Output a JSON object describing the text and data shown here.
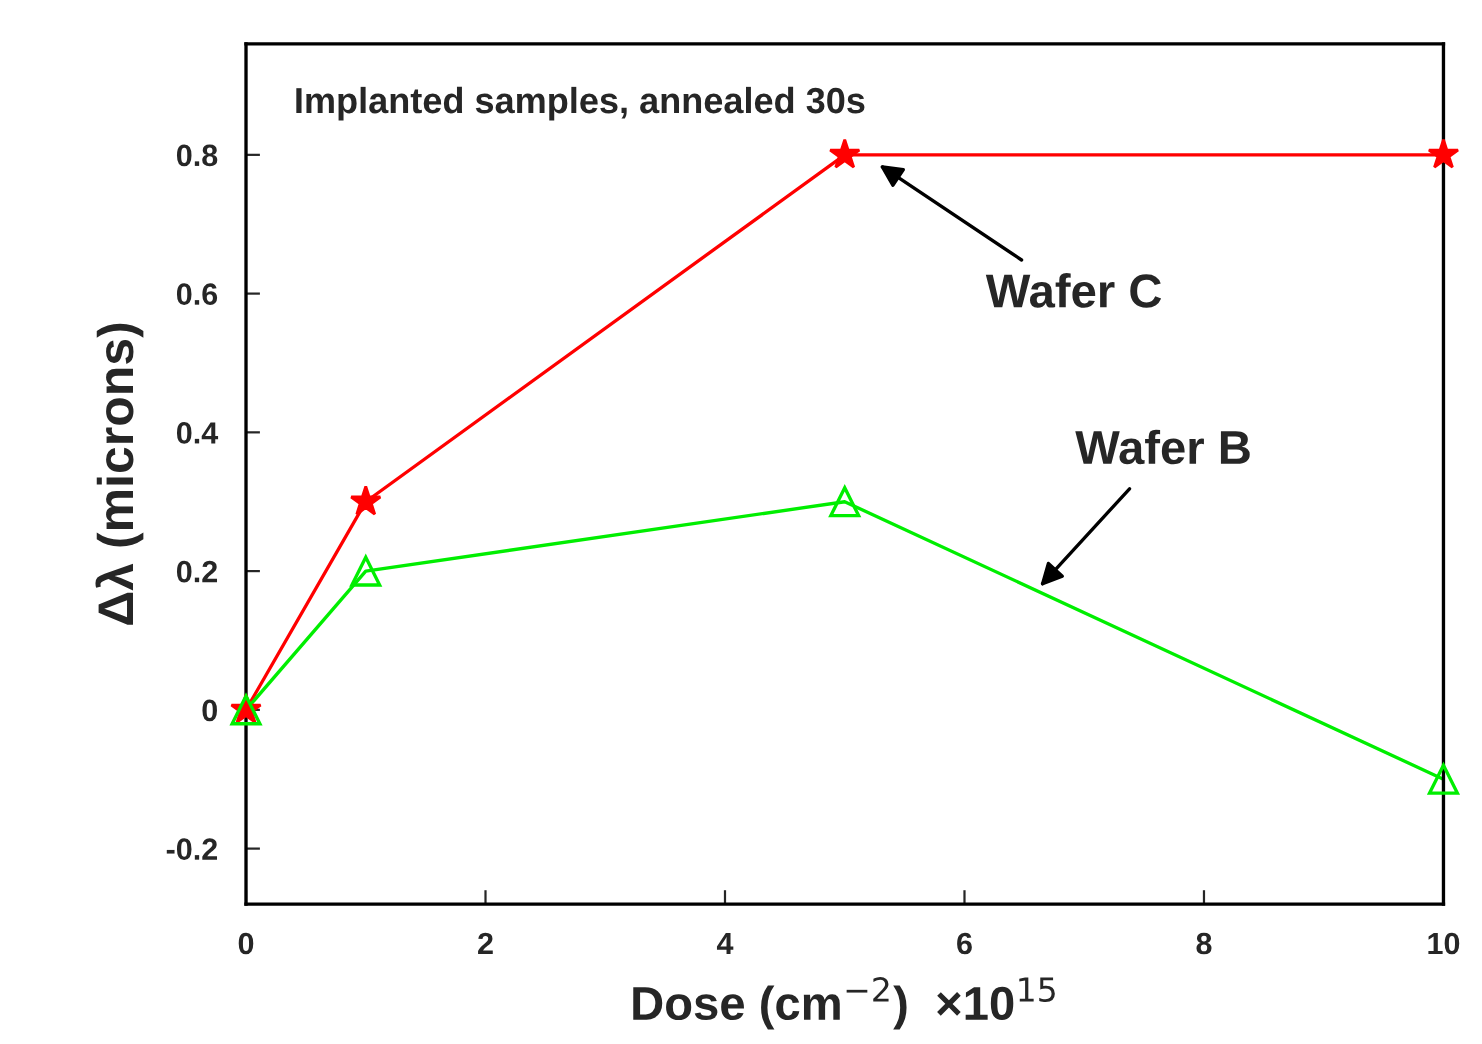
{
  "chart_data": {
    "type": "line",
    "xlabel": "Dose (cm$^{−2}$)  ×10$^{15}$",
    "ylabel": "Δλ (microns)",
    "x": [
      0,
      1,
      5,
      10
    ],
    "series": [
      {
        "color": "#ff0000",
        "marker": "star",
        "values": [
          0,
          0.3,
          0.8,
          0.8
        ]
      },
      {
        "color": "#00ee00",
        "marker": "triangle",
        "values": [
          0,
          0.2,
          0.3,
          -0.1
        ]
      }
    ],
    "xlim": [
      0,
      10
    ],
    "xticks": [
      0,
      2,
      4,
      6,
      8,
      10
    ],
    "ylim": [
      -0.28,
      0.96
    ],
    "yticks": [
      -0.2,
      0,
      0.2,
      0.4,
      0.6,
      0.8
    ],
    "grid": false,
    "line_style": "solid",
    "annotations": [
      "Implanted samples, annealed 30s",
      {
        "text": "Wafer C",
        "x": 5.25,
        "y": 0.79
      },
      {
        "text": "Wafer B",
        "x": 6.6,
        "y": 0.172
      }
    ]
  }
}
